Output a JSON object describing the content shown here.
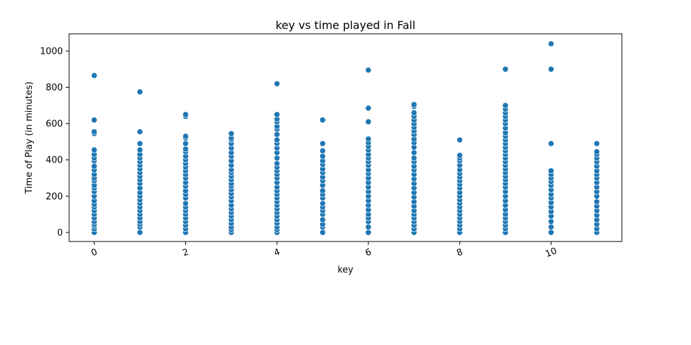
{
  "chart_data": {
    "type": "scatter",
    "title": "key vs time played in Fall",
    "xlabel": "key",
    "ylabel": "Time of Play (in minutes)",
    "xlim": [
      -0.55,
      11.55
    ],
    "ylim": [
      -50,
      1095
    ],
    "xticks": [
      0,
      2,
      4,
      6,
      8,
      10
    ],
    "xtick_labels": [
      "0",
      "2",
      "4",
      "6",
      "8",
      "10"
    ],
    "xtick_rotation_deg": -20,
    "yticks": [
      0,
      200,
      400,
      600,
      800,
      1000
    ],
    "ytick_labels": [
      "0",
      "200",
      "400",
      "600",
      "800",
      "1000"
    ],
    "grid": false,
    "point_color": "#1f77b4",
    "point_edge_color": "#ffffff",
    "series": [
      {
        "points": [
          [
            0,
            0
          ],
          [
            0,
            20
          ],
          [
            0,
            35
          ],
          [
            0,
            45
          ],
          [
            0,
            60
          ],
          [
            0,
            80
          ],
          [
            0,
            100
          ],
          [
            0,
            120
          ],
          [
            0,
            140
          ],
          [
            0,
            155
          ],
          [
            0,
            175
          ],
          [
            0,
            200
          ],
          [
            0,
            225
          ],
          [
            0,
            245
          ],
          [
            0,
            260
          ],
          [
            0,
            285
          ],
          [
            0,
            300
          ],
          [
            0,
            320
          ],
          [
            0,
            345
          ],
          [
            0,
            365
          ],
          [
            0,
            395
          ],
          [
            0,
            410
          ],
          [
            0,
            430
          ],
          [
            0,
            455
          ],
          [
            0,
            545
          ],
          [
            0,
            555
          ],
          [
            0,
            620
          ],
          [
            0,
            865
          ],
          [
            1,
            0
          ],
          [
            1,
            30
          ],
          [
            1,
            45
          ],
          [
            1,
            60
          ],
          [
            1,
            80
          ],
          [
            1,
            100
          ],
          [
            1,
            120
          ],
          [
            1,
            140
          ],
          [
            1,
            160
          ],
          [
            1,
            180
          ],
          [
            1,
            200
          ],
          [
            1,
            220
          ],
          [
            1,
            245
          ],
          [
            1,
            270
          ],
          [
            1,
            290
          ],
          [
            1,
            310
          ],
          [
            1,
            330
          ],
          [
            1,
            350
          ],
          [
            1,
            370
          ],
          [
            1,
            390
          ],
          [
            1,
            410
          ],
          [
            1,
            430
          ],
          [
            1,
            455
          ],
          [
            1,
            490
          ],
          [
            1,
            555
          ],
          [
            1,
            775
          ],
          [
            2,
            0
          ],
          [
            2,
            20
          ],
          [
            2,
            40
          ],
          [
            2,
            60
          ],
          [
            2,
            80
          ],
          [
            2,
            100
          ],
          [
            2,
            120
          ],
          [
            2,
            140
          ],
          [
            2,
            160
          ],
          [
            2,
            190
          ],
          [
            2,
            210
          ],
          [
            2,
            230
          ],
          [
            2,
            255
          ],
          [
            2,
            275
          ],
          [
            2,
            300
          ],
          [
            2,
            320
          ],
          [
            2,
            340
          ],
          [
            2,
            360
          ],
          [
            2,
            380
          ],
          [
            2,
            400
          ],
          [
            2,
            420
          ],
          [
            2,
            445
          ],
          [
            2,
            460
          ],
          [
            2,
            490
          ],
          [
            2,
            520
          ],
          [
            2,
            530
          ],
          [
            2,
            640
          ],
          [
            2,
            650
          ],
          [
            3,
            0
          ],
          [
            3,
            15
          ],
          [
            3,
            30
          ],
          [
            3,
            50
          ],
          [
            3,
            70
          ],
          [
            3,
            90
          ],
          [
            3,
            110
          ],
          [
            3,
            130
          ],
          [
            3,
            150
          ],
          [
            3,
            175
          ],
          [
            3,
            195
          ],
          [
            3,
            215
          ],
          [
            3,
            235
          ],
          [
            3,
            255
          ],
          [
            3,
            270
          ],
          [
            3,
            290
          ],
          [
            3,
            310
          ],
          [
            3,
            330
          ],
          [
            3,
            345
          ],
          [
            3,
            370
          ],
          [
            3,
            395
          ],
          [
            3,
            420
          ],
          [
            3,
            440
          ],
          [
            3,
            465
          ],
          [
            3,
            490
          ],
          [
            3,
            510
          ],
          [
            3,
            520
          ],
          [
            3,
            545
          ],
          [
            4,
            0
          ],
          [
            4,
            15
          ],
          [
            4,
            30
          ],
          [
            4,
            50
          ],
          [
            4,
            70
          ],
          [
            4,
            90
          ],
          [
            4,
            110
          ],
          [
            4,
            130
          ],
          [
            4,
            150
          ],
          [
            4,
            170
          ],
          [
            4,
            190
          ],
          [
            4,
            210
          ],
          [
            4,
            230
          ],
          [
            4,
            250
          ],
          [
            4,
            275
          ],
          [
            4,
            300
          ],
          [
            4,
            320
          ],
          [
            4,
            340
          ],
          [
            4,
            360
          ],
          [
            4,
            380
          ],
          [
            4,
            410
          ],
          [
            4,
            440
          ],
          [
            4,
            465
          ],
          [
            4,
            490
          ],
          [
            4,
            510
          ],
          [
            4,
            540
          ],
          [
            4,
            570
          ],
          [
            4,
            585
          ],
          [
            4,
            610
          ],
          [
            4,
            625
          ],
          [
            4,
            650
          ],
          [
            4,
            820
          ],
          [
            5,
            0
          ],
          [
            5,
            30
          ],
          [
            5,
            45
          ],
          [
            5,
            70
          ],
          [
            5,
            100
          ],
          [
            5,
            120
          ],
          [
            5,
            140
          ],
          [
            5,
            160
          ],
          [
            5,
            190
          ],
          [
            5,
            210
          ],
          [
            5,
            230
          ],
          [
            5,
            260
          ],
          [
            5,
            285
          ],
          [
            5,
            305
          ],
          [
            5,
            330
          ],
          [
            5,
            350
          ],
          [
            5,
            375
          ],
          [
            5,
            395
          ],
          [
            5,
            420
          ],
          [
            5,
            450
          ],
          [
            5,
            490
          ],
          [
            5,
            620
          ],
          [
            6,
            0
          ],
          [
            6,
            30
          ],
          [
            6,
            60
          ],
          [
            6,
            80
          ],
          [
            6,
            100
          ],
          [
            6,
            125
          ],
          [
            6,
            150
          ],
          [
            6,
            175
          ],
          [
            6,
            200
          ],
          [
            6,
            225
          ],
          [
            6,
            250
          ],
          [
            6,
            275
          ],
          [
            6,
            300
          ],
          [
            6,
            325
          ],
          [
            6,
            345
          ],
          [
            6,
            370
          ],
          [
            6,
            390
          ],
          [
            6,
            410
          ],
          [
            6,
            430
          ],
          [
            6,
            455
          ],
          [
            6,
            475
          ],
          [
            6,
            495
          ],
          [
            6,
            515
          ],
          [
            6,
            610
          ],
          [
            6,
            685
          ],
          [
            6,
            895
          ],
          [
            7,
            0
          ],
          [
            7,
            20
          ],
          [
            7,
            40
          ],
          [
            7,
            60
          ],
          [
            7,
            80
          ],
          [
            7,
            100
          ],
          [
            7,
            120
          ],
          [
            7,
            145
          ],
          [
            7,
            170
          ],
          [
            7,
            195
          ],
          [
            7,
            220
          ],
          [
            7,
            245
          ],
          [
            7,
            270
          ],
          [
            7,
            295
          ],
          [
            7,
            320
          ],
          [
            7,
            345
          ],
          [
            7,
            365
          ],
          [
            7,
            390
          ],
          [
            7,
            410
          ],
          [
            7,
            440
          ],
          [
            7,
            470
          ],
          [
            7,
            495
          ],
          [
            7,
            515
          ],
          [
            7,
            540
          ],
          [
            7,
            560
          ],
          [
            7,
            580
          ],
          [
            7,
            600
          ],
          [
            7,
            620
          ],
          [
            7,
            640
          ],
          [
            7,
            660
          ],
          [
            7,
            695
          ],
          [
            7,
            705
          ],
          [
            8,
            0
          ],
          [
            8,
            20
          ],
          [
            8,
            40
          ],
          [
            8,
            60
          ],
          [
            8,
            80
          ],
          [
            8,
            100
          ],
          [
            8,
            120
          ],
          [
            8,
            140
          ],
          [
            8,
            160
          ],
          [
            8,
            180
          ],
          [
            8,
            200
          ],
          [
            8,
            220
          ],
          [
            8,
            245
          ],
          [
            8,
            265
          ],
          [
            8,
            285
          ],
          [
            8,
            305
          ],
          [
            8,
            325
          ],
          [
            8,
            345
          ],
          [
            8,
            370
          ],
          [
            8,
            395
          ],
          [
            8,
            410
          ],
          [
            8,
            425
          ],
          [
            8,
            510
          ],
          [
            9,
            0
          ],
          [
            9,
            20
          ],
          [
            9,
            40
          ],
          [
            9,
            60
          ],
          [
            9,
            80
          ],
          [
            9,
            100
          ],
          [
            9,
            125
          ],
          [
            9,
            150
          ],
          [
            9,
            175
          ],
          [
            9,
            200
          ],
          [
            9,
            225
          ],
          [
            9,
            250
          ],
          [
            9,
            270
          ],
          [
            9,
            290
          ],
          [
            9,
            310
          ],
          [
            9,
            330
          ],
          [
            9,
            350
          ],
          [
            9,
            370
          ],
          [
            9,
            390
          ],
          [
            9,
            410
          ],
          [
            9,
            430
          ],
          [
            9,
            450
          ],
          [
            9,
            470
          ],
          [
            9,
            490
          ],
          [
            9,
            510
          ],
          [
            9,
            530
          ],
          [
            9,
            550
          ],
          [
            9,
            575
          ],
          [
            9,
            600
          ],
          [
            9,
            620
          ],
          [
            9,
            640
          ],
          [
            9,
            660
          ],
          [
            9,
            680
          ],
          [
            9,
            700
          ],
          [
            9,
            900
          ],
          [
            10,
            0
          ],
          [
            10,
            30
          ],
          [
            10,
            60
          ],
          [
            10,
            90
          ],
          [
            10,
            115
          ],
          [
            10,
            140
          ],
          [
            10,
            165
          ],
          [
            10,
            190
          ],
          [
            10,
            210
          ],
          [
            10,
            235
          ],
          [
            10,
            260
          ],
          [
            10,
            280
          ],
          [
            10,
            300
          ],
          [
            10,
            320
          ],
          [
            10,
            340
          ],
          [
            10,
            490
          ],
          [
            10,
            900
          ],
          [
            10,
            1040
          ],
          [
            11,
            0
          ],
          [
            11,
            20
          ],
          [
            11,
            45
          ],
          [
            11,
            70
          ],
          [
            11,
            95
          ],
          [
            11,
            120
          ],
          [
            11,
            145
          ],
          [
            11,
            170
          ],
          [
            11,
            200
          ],
          [
            11,
            225
          ],
          [
            11,
            250
          ],
          [
            11,
            275
          ],
          [
            11,
            300
          ],
          [
            11,
            320
          ],
          [
            11,
            340
          ],
          [
            11,
            365
          ],
          [
            11,
            390
          ],
          [
            11,
            410
          ],
          [
            11,
            430
          ],
          [
            11,
            445
          ],
          [
            11,
            490
          ]
        ]
      }
    ]
  }
}
